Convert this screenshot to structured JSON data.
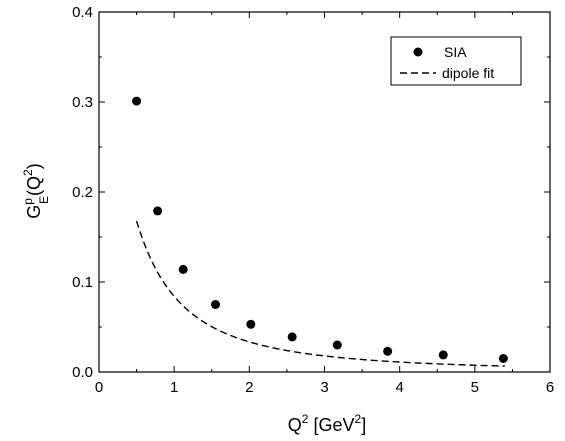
{
  "chart_data": {
    "type": "scatter",
    "xlim": [
      0,
      6
    ],
    "ylim": [
      0,
      0.4
    ],
    "x_ticks": [
      0,
      1,
      2,
      3,
      4,
      5,
      6
    ],
    "y_ticks": [
      0.0,
      0.1,
      0.2,
      0.3,
      0.4
    ],
    "x_tick_labels": [
      "0",
      "1",
      "2",
      "3",
      "4",
      "5",
      "6"
    ],
    "y_tick_labels": [
      "0.0",
      "0.1",
      "0.2",
      "0.3",
      "0.4"
    ],
    "xlabel": {
      "main": "Q",
      "sup": "2",
      "rest": " [GeV",
      "sup2": "2",
      "end": "]"
    },
    "ylabel": {
      "G": "G",
      "sup": "p",
      "sub": "E",
      "open": "(Q",
      "sup2": "2",
      "close": ")"
    },
    "legend_placement": "top-right",
    "series": [
      {
        "name": "SIA",
        "style": "points",
        "x": [
          0.5,
          0.78,
          1.12,
          1.55,
          2.02,
          2.57,
          3.17,
          3.84,
          4.58,
          5.38
        ],
        "y": [
          0.301,
          0.179,
          0.114,
          0.075,
          0.053,
          0.039,
          0.03,
          0.023,
          0.019,
          0.015
        ]
      },
      {
        "name": "dipole fit",
        "style": "dashed-line",
        "function": "dipole",
        "norm": 0.4875,
        "lambda2": 0.71,
        "x_range": [
          0.5,
          5.4
        ]
      }
    ]
  }
}
